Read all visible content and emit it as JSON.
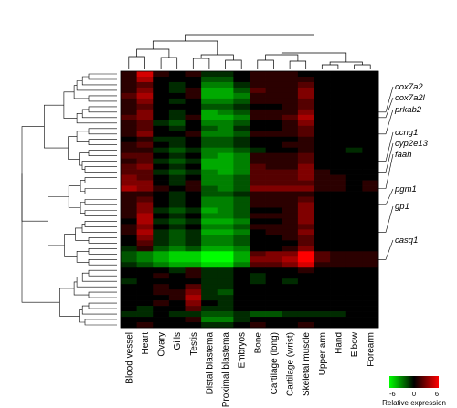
{
  "chart_data": {
    "type": "heatmap",
    "columns": [
      "Blood vessel",
      "Heart",
      "Ovary",
      "Gills",
      "Testis",
      "Distal blastema",
      "Proximal blastema",
      "Embryos",
      "Bone",
      "Cartilage (long)",
      "Cartilage (wrist)",
      "Skeletal muscle",
      "Upper arm",
      "Hand",
      "Elbow",
      "Forearm"
    ],
    "genes": [
      {
        "name": "cox7a2",
        "row": 7
      },
      {
        "name": "cox7a2l",
        "row": 8
      },
      {
        "name": "prkab2",
        "row": 11
      },
      {
        "name": "ccng1",
        "row": 16
      },
      {
        "name": "cyp2e13",
        "row": 18
      },
      {
        "name": "faah",
        "row": 21
      },
      {
        "name": "pgm1",
        "row": 24
      },
      {
        "name": "gp1",
        "row": 29
      },
      {
        "name": "casq1",
        "row": 34
      }
    ],
    "values": [
      [
        1,
        5,
        1,
        0,
        1,
        -1,
        -1,
        0,
        1,
        1,
        1,
        0,
        0,
        0,
        0,
        0
      ],
      [
        1,
        4,
        0,
        0,
        0,
        -2,
        -2,
        0,
        1,
        1,
        1,
        1,
        0,
        0,
        0,
        0
      ],
      [
        1,
        2,
        0,
        -1,
        0,
        -3,
        -3,
        -1,
        1,
        1,
        1,
        2,
        0,
        0,
        0,
        0
      ],
      [
        1,
        3,
        0,
        -1,
        1,
        -4,
        -4,
        -2,
        2,
        1,
        1,
        3,
        0,
        0,
        0,
        0
      ],
      [
        2,
        4,
        0,
        0,
        1,
        -4,
        -4,
        -3,
        1,
        1,
        1,
        3,
        0,
        0,
        0,
        0
      ],
      [
        1,
        3,
        0,
        -1,
        0,
        -3,
        -3,
        -2,
        1,
        1,
        1,
        2,
        0,
        0,
        0,
        0
      ],
      [
        1,
        2,
        0,
        0,
        0,
        -2,
        -2,
        -1,
        0,
        0,
        1,
        2,
        0,
        0,
        0,
        0
      ],
      [
        1,
        3,
        0,
        -1,
        0,
        -4,
        -3,
        -2,
        1,
        1,
        1,
        3,
        0,
        0,
        0,
        0
      ],
      [
        2,
        3,
        0,
        -1,
        1,
        -4,
        -4,
        -3,
        1,
        1,
        2,
        4,
        0,
        0,
        0,
        0
      ],
      [
        1,
        2,
        -1,
        -2,
        0,
        -3,
        -3,
        -2,
        0,
        0,
        1,
        3,
        0,
        0,
        0,
        0
      ],
      [
        1,
        2,
        0,
        -1,
        0,
        -2,
        -3,
        -1,
        0,
        0,
        1,
        2,
        0,
        0,
        0,
        0
      ],
      [
        1,
        3,
        0,
        0,
        1,
        -3,
        -3,
        -2,
        1,
        1,
        1,
        2,
        0,
        0,
        0,
        0
      ],
      [
        0,
        1,
        -1,
        -1,
        0,
        -2,
        -2,
        -1,
        0,
        0,
        0,
        1,
        0,
        0,
        0,
        0
      ],
      [
        1,
        2,
        0,
        -1,
        0,
        -2,
        -2,
        -1,
        0,
        0,
        1,
        1,
        0,
        0,
        0,
        0
      ],
      [
        1,
        1,
        -1,
        -2,
        -1,
        -3,
        -3,
        -2,
        -1,
        0,
        0,
        1,
        0,
        0,
        -1,
        0
      ],
      [
        2,
        2,
        0,
        -1,
        0,
        -3,
        -4,
        -3,
        1,
        1,
        1,
        2,
        0,
        0,
        0,
        0
      ],
      [
        1,
        2,
        -1,
        -2,
        -1,
        -4,
        -4,
        -3,
        1,
        1,
        1,
        2,
        0,
        0,
        0,
        0
      ],
      [
        2,
        3,
        0,
        -1,
        0,
        -4,
        -4,
        -3,
        2,
        1,
        1,
        3,
        0,
        0,
        0,
        0
      ],
      [
        2,
        2,
        -1,
        -2,
        -1,
        -3,
        -4,
        -3,
        2,
        2,
        2,
        3,
        1,
        0,
        0,
        0
      ],
      [
        3,
        2,
        0,
        -1,
        0,
        -3,
        -3,
        -2,
        2,
        2,
        2,
        3,
        1,
        1,
        0,
        0
      ],
      [
        3,
        3,
        0,
        -1,
        1,
        -3,
        -3,
        -2,
        2,
        2,
        2,
        2,
        1,
        1,
        0,
        1
      ],
      [
        4,
        3,
        1,
        0,
        1,
        -2,
        -3,
        -2,
        3,
        3,
        3,
        3,
        1,
        1,
        0,
        1
      ],
      [
        1,
        1,
        0,
        -1,
        0,
        -2,
        -2,
        -1,
        1,
        1,
        1,
        1,
        0,
        0,
        0,
        0
      ],
      [
        1,
        2,
        0,
        -1,
        0,
        -3,
        -3,
        -2,
        1,
        1,
        1,
        2,
        0,
        0,
        0,
        0
      ],
      [
        1,
        3,
        0,
        -1,
        0,
        -3,
        -3,
        -2,
        1,
        1,
        1,
        3,
        0,
        0,
        0,
        0
      ],
      [
        1,
        3,
        -1,
        -2,
        -1,
        -4,
        -3,
        -2,
        0,
        0,
        1,
        3,
        0,
        0,
        0,
        0
      ],
      [
        1,
        4,
        0,
        -1,
        0,
        -3,
        -3,
        -2,
        1,
        1,
        1,
        3,
        0,
        0,
        0,
        0
      ],
      [
        0,
        4,
        -1,
        -2,
        -1,
        -4,
        -4,
        -3,
        0,
        0,
        1,
        3,
        0,
        0,
        0,
        0
      ],
      [
        1,
        3,
        0,
        -1,
        0,
        -3,
        -3,
        -2,
        1,
        1,
        1,
        2,
        0,
        0,
        0,
        0
      ],
      [
        1,
        4,
        -1,
        -2,
        -1,
        -4,
        -4,
        -3,
        0,
        1,
        1,
        3,
        0,
        0,
        0,
        0
      ],
      [
        0,
        3,
        -1,
        -2,
        -1,
        -3,
        -3,
        -2,
        0,
        0,
        1,
        2,
        0,
        0,
        0,
        0
      ],
      [
        0,
        2,
        -1,
        -2,
        -1,
        -3,
        -3,
        -2,
        0,
        0,
        0,
        2,
        0,
        0,
        0,
        0
      ],
      [
        -1,
        1,
        -2,
        -3,
        -2,
        -4,
        -4,
        -3,
        0,
        0,
        1,
        3,
        0,
        0,
        0,
        0
      ],
      [
        -2,
        -3,
        -4,
        -5,
        -5,
        -6,
        -6,
        -4,
        2,
        3,
        3,
        6,
        2,
        1,
        1,
        1
      ],
      [
        -2,
        -3,
        -4,
        -5,
        -5,
        -6,
        -6,
        -4,
        3,
        3,
        4,
        6,
        2,
        1,
        1,
        1
      ],
      [
        -1,
        -2,
        -3,
        -4,
        -4,
        -5,
        -5,
        -3,
        2,
        2,
        3,
        5,
        1,
        1,
        1,
        1
      ],
      [
        0,
        0,
        0,
        -1,
        1,
        -1,
        -1,
        0,
        0,
        0,
        0,
        1,
        0,
        0,
        0,
        0
      ],
      [
        0,
        0,
        1,
        0,
        1,
        -1,
        -1,
        0,
        -1,
        0,
        0,
        0,
        0,
        0,
        0,
        0
      ],
      [
        -1,
        0,
        0,
        0,
        0,
        -1,
        -1,
        0,
        -1,
        0,
        -1,
        0,
        0,
        0,
        0,
        0
      ],
      [
        0,
        0,
        1,
        0,
        2,
        -1,
        -1,
        0,
        0,
        0,
        0,
        0,
        0,
        0,
        0,
        0
      ],
      [
        0,
        0,
        1,
        1,
        3,
        -1,
        -2,
        0,
        0,
        0,
        0,
        0,
        0,
        0,
        0,
        0
      ],
      [
        0,
        0,
        0,
        1,
        4,
        -1,
        -1,
        0,
        0,
        0,
        0,
        0,
        0,
        0,
        0,
        0
      ],
      [
        0,
        0,
        1,
        0,
        3,
        0,
        -1,
        0,
        0,
        0,
        0,
        0,
        0,
        0,
        0,
        0
      ],
      [
        0,
        -1,
        0,
        0,
        2,
        -1,
        -1,
        0,
        0,
        0,
        0,
        0,
        0,
        0,
        0,
        0
      ],
      [
        -1,
        -1,
        0,
        -1,
        -1,
        -2,
        -2,
        -1,
        -2,
        -2,
        -1,
        -1,
        -1,
        -1,
        0,
        0
      ],
      [
        0,
        0,
        0,
        0,
        1,
        -3,
        -3,
        -1,
        0,
        0,
        0,
        0,
        0,
        0,
        0,
        0
      ],
      [
        0,
        1,
        0,
        0,
        0,
        -1,
        -1,
        0,
        1,
        0,
        0,
        1,
        0,
        0,
        0,
        0
      ]
    ],
    "color_scale": {
      "min": -6,
      "max": 6,
      "low": "#00ff00",
      "mid": "#000000",
      "high": "#ff0000"
    },
    "legend": {
      "ticks": [
        "-6",
        "0",
        "6"
      ],
      "title": "Relative expression"
    }
  }
}
